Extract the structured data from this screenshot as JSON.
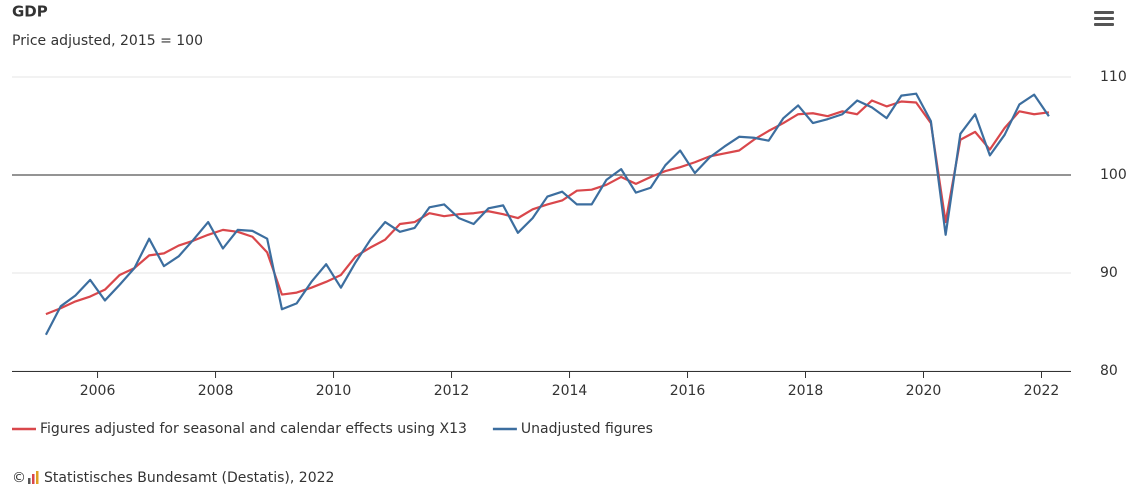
{
  "chart_data": {
    "type": "line",
    "title": "GDP",
    "subtitle": "Price adjusted, 2015 = 100",
    "x": [
      2005.125,
      2005.375,
      2005.625,
      2005.875,
      2006.125,
      2006.375,
      2006.625,
      2006.875,
      2007.125,
      2007.375,
      2007.625,
      2007.875,
      2008.125,
      2008.375,
      2008.625,
      2008.875,
      2009.125,
      2009.375,
      2009.625,
      2009.875,
      2010.125,
      2010.375,
      2010.625,
      2010.875,
      2011.125,
      2011.375,
      2011.625,
      2011.875,
      2012.125,
      2012.375,
      2012.625,
      2012.875,
      2013.125,
      2013.375,
      2013.625,
      2013.875,
      2014.125,
      2014.375,
      2014.625,
      2014.875,
      2015.125,
      2015.375,
      2015.625,
      2015.875,
      2016.125,
      2016.375,
      2016.625,
      2016.875,
      2017.125,
      2017.375,
      2017.625,
      2017.875,
      2018.125,
      2018.375,
      2018.625,
      2018.875,
      2019.125,
      2019.375,
      2019.625,
      2019.875,
      2020.125,
      2020.375,
      2020.625,
      2020.875,
      2021.125,
      2021.375,
      2021.625,
      2021.875,
      2022.125
    ],
    "series": [
      {
        "name": "Figures adjusted for seasonal and calendar effects using X13",
        "color": "#d9474b",
        "values": [
          85.8,
          86.4,
          87.1,
          87.6,
          88.3,
          89.8,
          90.5,
          91.8,
          92.0,
          92.8,
          93.3,
          93.9,
          94.4,
          94.2,
          93.7,
          92.1,
          87.8,
          88.0,
          88.5,
          89.1,
          89.8,
          91.7,
          92.6,
          93.4,
          95.0,
          95.2,
          96.1,
          95.8,
          96.0,
          96.1,
          96.3,
          96.0,
          95.6,
          96.5,
          97.0,
          97.4,
          98.4,
          98.5,
          99.0,
          99.8,
          99.1,
          99.8,
          100.4,
          100.8,
          101.3,
          101.9,
          102.2,
          102.5,
          103.6,
          104.5,
          105.3,
          106.2,
          106.3,
          106.0,
          106.5,
          106.2,
          107.6,
          107.0,
          107.5,
          107.4,
          105.3,
          95.2,
          103.6,
          104.4,
          102.6,
          104.8,
          106.5,
          106.2,
          106.4
        ]
      },
      {
        "name": "Unadjusted figures",
        "color": "#3c6e9f",
        "values": [
          83.7,
          86.6,
          87.7,
          89.3,
          87.2,
          88.8,
          90.5,
          93.5,
          90.7,
          91.7,
          93.4,
          95.2,
          92.5,
          94.4,
          94.3,
          93.5,
          86.3,
          86.9,
          89.1,
          90.9,
          88.5,
          91.1,
          93.4,
          95.2,
          94.2,
          94.6,
          96.7,
          97.0,
          95.6,
          95.0,
          96.6,
          96.9,
          94.1,
          95.6,
          97.8,
          98.3,
          97.0,
          97.0,
          99.5,
          100.6,
          98.2,
          98.7,
          101.0,
          102.5,
          100.2,
          101.8,
          102.9,
          103.9,
          103.8,
          103.5,
          105.8,
          107.1,
          105.3,
          105.7,
          106.2,
          107.6,
          106.9,
          105.8,
          108.1,
          108.3,
          105.5,
          93.9,
          104.2,
          106.2,
          102.0,
          104.1,
          107.2,
          108.2,
          106.0
        ]
      }
    ],
    "xlim": [
      2004.55,
      2022.5
    ],
    "xticks": [
      2006,
      2008,
      2010,
      2012,
      2014,
      2016,
      2018,
      2020,
      2022
    ],
    "ylim": [
      80,
      110
    ],
    "yticks": [
      80,
      90,
      100,
      110
    ],
    "reference_line": 100,
    "grid": true,
    "legend": "bottom",
    "copyright": "©",
    "source": "Statistisches Bundesamt (Destatis), 2022"
  }
}
